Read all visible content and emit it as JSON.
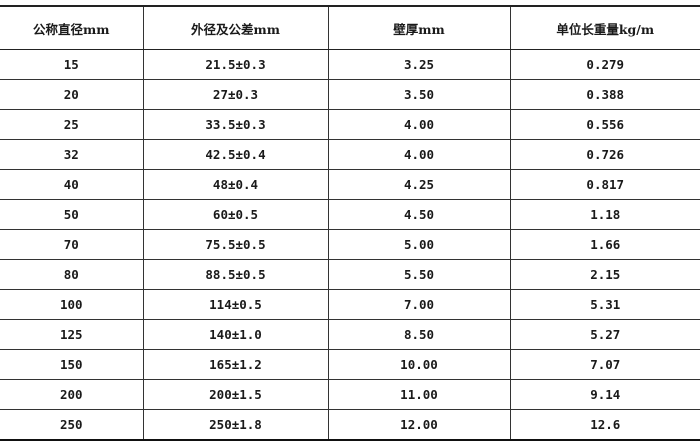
{
  "table": {
    "headers": [
      "公称直径mm",
      "外径及公差mm",
      "壁厚mm",
      "单位长重量kg/m"
    ],
    "rows": [
      [
        "15",
        "21.5±0.3",
        "3.25",
        "0.279"
      ],
      [
        "20",
        "27±0.3",
        "3.50",
        "0.388"
      ],
      [
        "25",
        "33.5±0.3",
        "4.00",
        "0.556"
      ],
      [
        "32",
        "42.5±0.4",
        "4.00",
        "0.726"
      ],
      [
        "40",
        "48±0.4",
        "4.25",
        "0.817"
      ],
      [
        "50",
        "60±0.5",
        "4.50",
        "1.18"
      ],
      [
        "70",
        "75.5±0.5",
        "5.00",
        "1.66"
      ],
      [
        "80",
        "88.5±0.5",
        "5.50",
        "2.15"
      ],
      [
        "100",
        "114±0.5",
        "7.00",
        "5.31"
      ],
      [
        "125",
        "140±1.0",
        "8.50",
        "5.27"
      ],
      [
        "150",
        "165±1.2",
        "10.00",
        "7.07"
      ],
      [
        "200",
        "200±1.5",
        "11.00",
        "9.14"
      ],
      [
        "250",
        "250±1.8",
        "12.00",
        "12.6"
      ]
    ]
  }
}
